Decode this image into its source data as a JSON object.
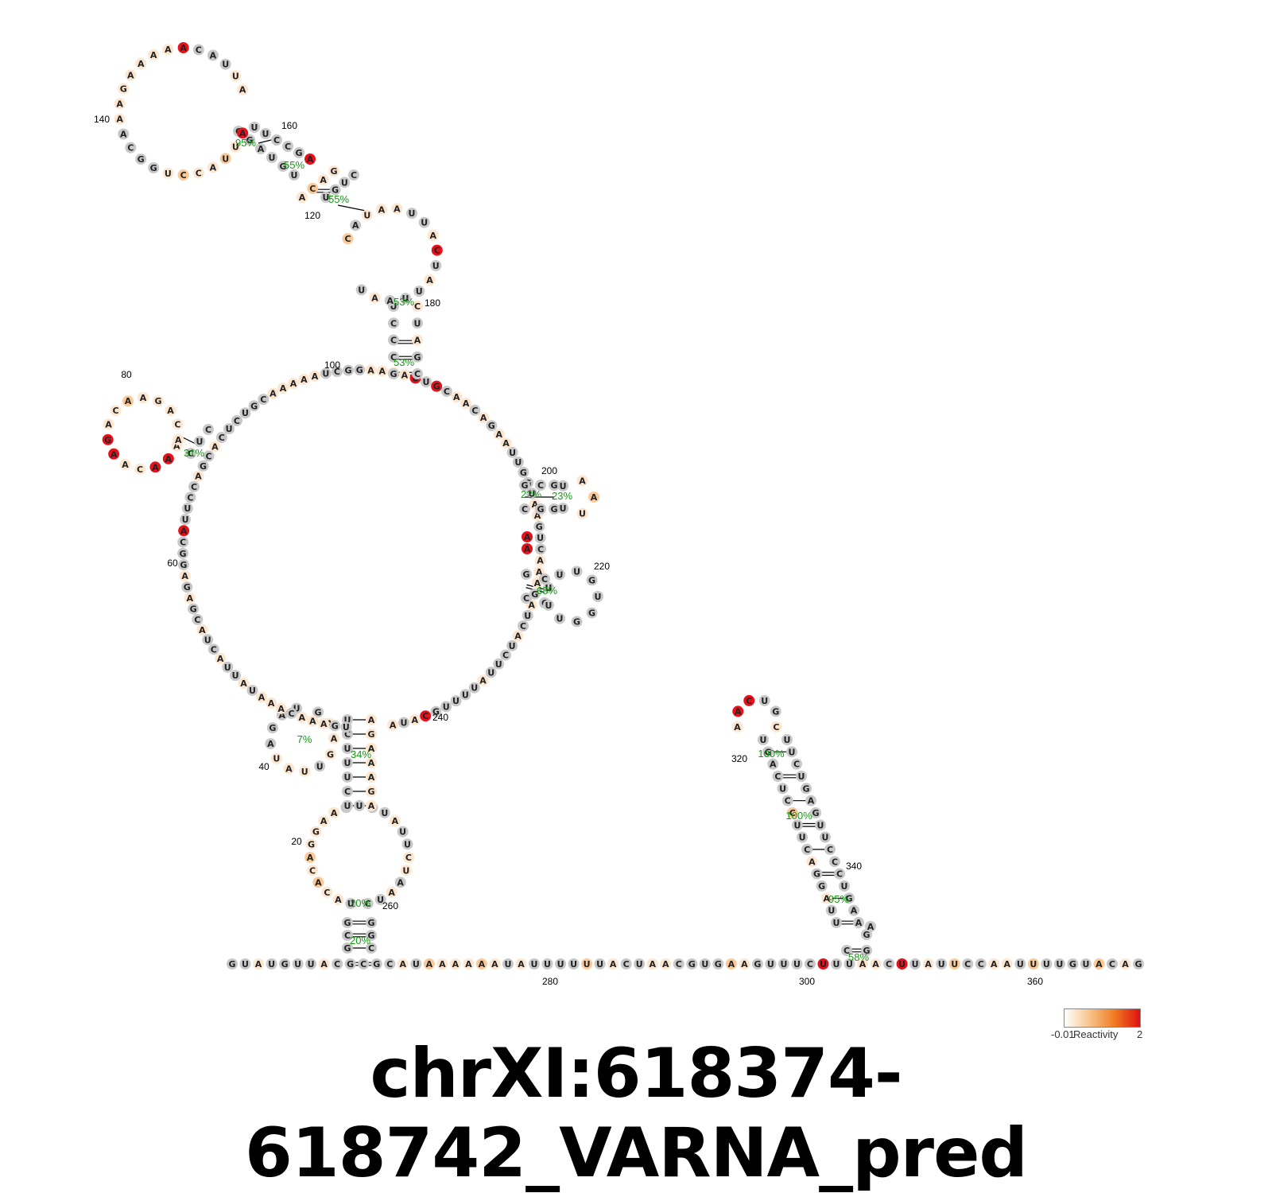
{
  "title": "chrXI:618374-618742_VARNA_pred",
  "colors": {
    "none": "#c8c8c8",
    "low": "#fde6cf",
    "med": "#f9c999",
    "high": "#e8101a"
  },
  "legend": {
    "min": "-0.01",
    "label": "Reactivity",
    "max": "2"
  },
  "baseline_sequence": "GUAUGUUACGCGCAUAAAAAAUAUUUUUUACUAACGUGAAGUUUCUUUAACUUAUUCCAAUUUUGUACAG",
  "index_labels": [
    "20",
    "40",
    "60",
    "80",
    "100",
    "120",
    "140",
    "160",
    "180",
    "200",
    "220",
    "240",
    "260",
    "280",
    "300",
    "320",
    "340",
    "360"
  ],
  "probabilities": [
    "95%",
    "55%",
    "55%",
    "53%",
    "53%",
    "31%",
    "22%",
    "23%",
    "68%",
    "7%",
    "34%",
    "20%",
    "20%",
    "100%",
    "100%",
    "95%",
    "58%"
  ]
}
